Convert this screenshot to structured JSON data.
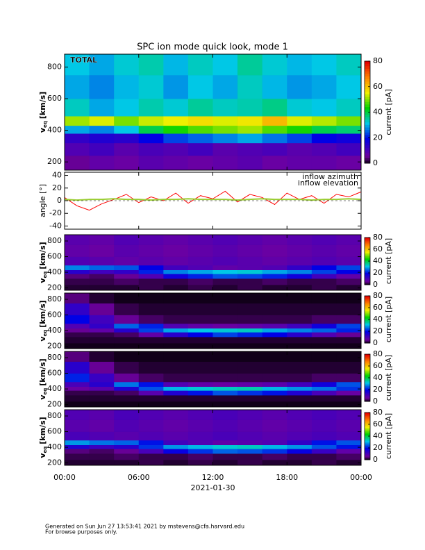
{
  "title": "SPC ion mode quick look, mode 1",
  "footer": [
    "Generated on Sun Jun 27 13:53:41 2021 by mstevens@cfa.harvard.edu",
    "For browse purposes only."
  ],
  "chart_data": [
    {
      "type": "heatmap",
      "label": "TOTAL",
      "ylabel": "v",
      "ylabel_sub": "eq",
      "ylabel_unit": "[km/s]",
      "xlim": [
        0,
        24
      ],
      "ylim": [
        148,
        882
      ],
      "yticks": [
        200,
        400,
        600,
        800
      ],
      "x_bins": [
        0,
        2,
        4,
        6,
        8,
        10,
        12,
        14,
        16,
        18,
        20,
        22,
        24
      ],
      "y_bins": [
        148,
        240,
        320,
        380,
        430,
        490,
        600,
        750,
        882
      ],
      "colormap": "rainbow",
      "clim": [
        0,
        80
      ],
      "cticks": [
        0,
        20,
        40,
        60,
        80
      ],
      "clabel": "current [pA]",
      "z": [
        [
          6,
          8,
          7,
          9,
          8,
          7,
          8,
          9,
          7,
          8,
          8,
          7
        ],
        [
          10,
          12,
          9,
          11,
          10,
          12,
          9,
          10,
          11,
          9,
          10,
          12
        ],
        [
          14,
          16,
          15,
          20,
          24,
          26,
          28,
          30,
          27,
          24,
          20,
          18
        ],
        [
          30,
          28,
          32,
          40,
          45,
          48,
          50,
          52,
          48,
          45,
          40,
          38
        ],
        [
          52,
          55,
          50,
          54,
          56,
          58,
          55,
          57,
          62,
          55,
          53,
          50
        ],
        [
          34,
          30,
          32,
          35,
          33,
          36,
          34,
          35,
          37,
          33,
          32,
          34
        ],
        [
          30,
          28,
          31,
          33,
          29,
          32,
          30,
          34,
          31,
          29,
          30,
          32
        ],
        [
          32,
          30,
          33,
          35,
          31,
          34,
          32,
          36,
          33,
          31,
          32,
          34
        ]
      ]
    },
    {
      "type": "line",
      "ylabel": "angle [°]",
      "xlim": [
        0,
        24
      ],
      "ylim": [
        -45,
        45
      ],
      "yticks": [
        -40,
        -20,
        0,
        20,
        40
      ],
      "x": [
        0,
        1,
        2,
        3,
        4,
        5,
        6,
        7,
        8,
        9,
        10,
        11,
        12,
        13,
        14,
        15,
        16,
        17,
        18,
        19,
        20,
        21,
        22,
        23,
        24
      ],
      "series": [
        {
          "name": "inflow azimuth",
          "color": "#ff0000",
          "values": [
            5,
            -8,
            -15,
            -5,
            2,
            10,
            -3,
            6,
            0,
            12,
            -4,
            8,
            3,
            15,
            -2,
            10,
            5,
            -6,
            12,
            2,
            8,
            -4,
            10,
            6,
            14
          ]
        },
        {
          "name": "inflow elevation",
          "color": "#9acd32",
          "values": [
            2,
            1,
            2,
            2,
            3,
            2,
            2,
            1,
            2,
            2,
            3,
            2,
            2,
            2,
            1,
            2,
            3,
            2,
            2,
            2,
            1,
            2,
            2,
            3,
            2
          ]
        }
      ]
    },
    {
      "type": "heatmap",
      "ylabel": "v",
      "ylabel_sub": "eq",
      "ylabel_unit": "[km/s]",
      "xlim": [
        0,
        24
      ],
      "ylim": [
        170,
        880
      ],
      "yticks": [
        200,
        400,
        600,
        800
      ],
      "x_bins": [
        0,
        2,
        4,
        6,
        8,
        10,
        12,
        14,
        16,
        18,
        20,
        22,
        24
      ],
      "y_bins": [
        170,
        240,
        320,
        380,
        430,
        490,
        600,
        750,
        880
      ],
      "colormap": "rainbow",
      "clim": [
        0,
        80
      ],
      "cticks": [
        0,
        20,
        40,
        60,
        80
      ],
      "clabel": "current [pA]",
      "z": [
        [
          2,
          2,
          2,
          3,
          2,
          3,
          2,
          3,
          2,
          2,
          3,
          2
        ],
        [
          3,
          3,
          4,
          3,
          3,
          4,
          3,
          3,
          4,
          3,
          3,
          4
        ],
        [
          5,
          4,
          6,
          10,
          18,
          22,
          25,
          24,
          22,
          18,
          12,
          8
        ],
        [
          15,
          12,
          14,
          22,
          28,
          30,
          32,
          33,
          30,
          28,
          24,
          20
        ],
        [
          28,
          26,
          25,
          20,
          12,
          10,
          8,
          9,
          10,
          14,
          20,
          24
        ],
        [
          10,
          9,
          8,
          9,
          8,
          9,
          10,
          9,
          8,
          9,
          10,
          9
        ],
        [
          8,
          7,
          9,
          8,
          7,
          8,
          9,
          8,
          7,
          8,
          9,
          8
        ],
        [
          9,
          8,
          10,
          9,
          8,
          9,
          10,
          9,
          8,
          9,
          10,
          9
        ]
      ]
    },
    {
      "type": "heatmap",
      "ylabel": "v",
      "ylabel_sub": "eq",
      "ylabel_unit": "[km/s]",
      "xlim": [
        0,
        24
      ],
      "ylim": [
        170,
        880
      ],
      "yticks": [
        200,
        400,
        600,
        800
      ],
      "x_bins": [
        0,
        2,
        4,
        6,
        8,
        10,
        12,
        14,
        16,
        18,
        20,
        22,
        24
      ],
      "y_bins": [
        170,
        240,
        320,
        380,
        430,
        490,
        600,
        750,
        880
      ],
      "colormap": "rainbow",
      "clim": [
        0,
        80
      ],
      "cticks": [
        0,
        20,
        40,
        60,
        80
      ],
      "clabel": "current [pA]",
      "z": [
        [
          1,
          1,
          1,
          1,
          1,
          1,
          1,
          1,
          1,
          1,
          1,
          1
        ],
        [
          2,
          2,
          2,
          2,
          2,
          2,
          2,
          2,
          2,
          2,
          2,
          2
        ],
        [
          3,
          3,
          4,
          8,
          15,
          20,
          24,
          22,
          20,
          15,
          10,
          6
        ],
        [
          6,
          8,
          15,
          24,
          30,
          32,
          33,
          34,
          30,
          28,
          26,
          22
        ],
        [
          10,
          14,
          26,
          22,
          10,
          8,
          7,
          8,
          9,
          12,
          18,
          24
        ],
        [
          20,
          12,
          6,
          4,
          3,
          3,
          3,
          3,
          3,
          3,
          4,
          4
        ],
        [
          14,
          6,
          3,
          2,
          2,
          2,
          2,
          2,
          2,
          2,
          2,
          2
        ],
        [
          5,
          2,
          1,
          1,
          1,
          1,
          1,
          1,
          1,
          1,
          1,
          1
        ]
      ]
    },
    {
      "type": "heatmap",
      "ylabel": "v",
      "ylabel_sub": "eq",
      "ylabel_unit": "[km/s]",
      "xlim": [
        0,
        24
      ],
      "ylim": [
        170,
        880
      ],
      "yticks": [
        200,
        400,
        600,
        800
      ],
      "x_bins": [
        0,
        2,
        4,
        6,
        8,
        10,
        12,
        14,
        16,
        18,
        20,
        22,
        24
      ],
      "y_bins": [
        170,
        240,
        320,
        380,
        430,
        490,
        600,
        750,
        880
      ],
      "colormap": "rainbow",
      "clim": [
        0,
        80
      ],
      "cticks": [
        0,
        20,
        40,
        60,
        80
      ],
      "clabel": "current [pA]",
      "z": [
        [
          1,
          1,
          1,
          1,
          1,
          1,
          1,
          1,
          1,
          1,
          1,
          1
        ],
        [
          2,
          2,
          2,
          2,
          2,
          2,
          2,
          2,
          2,
          2,
          2,
          2
        ],
        [
          3,
          3,
          4,
          9,
          16,
          21,
          25,
          23,
          21,
          16,
          11,
          7
        ],
        [
          7,
          9,
          16,
          25,
          31,
          33,
          34,
          35,
          31,
          29,
          27,
          23
        ],
        [
          11,
          15,
          27,
          21,
          10,
          8,
          7,
          8,
          9,
          12,
          18,
          25
        ],
        [
          22,
          13,
          6,
          4,
          3,
          3,
          3,
          3,
          3,
          3,
          4,
          4
        ],
        [
          15,
          6,
          3,
          2,
          2,
          2,
          2,
          2,
          2,
          2,
          2,
          2
        ],
        [
          5,
          2,
          1,
          1,
          1,
          1,
          1,
          1,
          1,
          1,
          1,
          1
        ]
      ]
    },
    {
      "type": "heatmap",
      "ylabel": "v",
      "ylabel_sub": "eq",
      "ylabel_unit": "[km/s]",
      "xlim": [
        0,
        24
      ],
      "ylim": [
        170,
        880
      ],
      "yticks": [
        200,
        400,
        600,
        800
      ],
      "x_bins": [
        0,
        2,
        4,
        6,
        8,
        10,
        12,
        14,
        16,
        18,
        20,
        22,
        24
      ],
      "y_bins": [
        170,
        240,
        320,
        380,
        430,
        490,
        600,
        750,
        880
      ],
      "colormap": "rainbow",
      "clim": [
        0,
        80
      ],
      "cticks": [
        0,
        20,
        40,
        60,
        80
      ],
      "clabel": "current [pA]",
      "xlabel": "2021-01-30",
      "xticks": [
        {
          "value": 0,
          "label": "00:00"
        },
        {
          "value": 6,
          "label": "06:00"
        },
        {
          "value": 12,
          "label": "12:00"
        },
        {
          "value": 18,
          "label": "18:00"
        },
        {
          "value": 24,
          "label": "00:00"
        }
      ],
      "z": [
        [
          2,
          2,
          2,
          3,
          2,
          3,
          2,
          3,
          2,
          2,
          3,
          2
        ],
        [
          3,
          3,
          4,
          3,
          3,
          4,
          3,
          3,
          4,
          3,
          3,
          4
        ],
        [
          5,
          4,
          6,
          11,
          19,
          23,
          26,
          25,
          23,
          19,
          13,
          8
        ],
        [
          16,
          13,
          15,
          23,
          29,
          31,
          33,
          34,
          31,
          29,
          25,
          21
        ],
        [
          29,
          27,
          26,
          21,
          12,
          10,
          8,
          9,
          10,
          14,
          21,
          25
        ],
        [
          11,
          10,
          9,
          10,
          9,
          10,
          11,
          10,
          9,
          10,
          11,
          10
        ],
        [
          9,
          8,
          10,
          9,
          8,
          9,
          10,
          9,
          8,
          9,
          10,
          9
        ],
        [
          10,
          9,
          11,
          10,
          9,
          10,
          11,
          10,
          9,
          10,
          11,
          10
        ]
      ]
    }
  ]
}
